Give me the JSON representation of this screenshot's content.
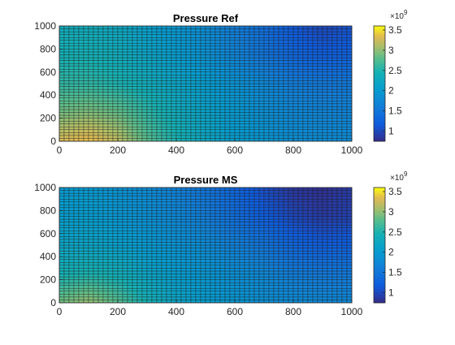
{
  "figure": {
    "background": "#ffffff",
    "colormap": "parula"
  },
  "chart_data": [
    {
      "type": "heatmap",
      "title": "Pressure Ref",
      "xlabel": "",
      "ylabel": "",
      "xlim": [
        0,
        1000
      ],
      "ylim": [
        0,
        1000
      ],
      "xticks": [
        0,
        200,
        400,
        600,
        800,
        1000
      ],
      "yticks": [
        0,
        200,
        400,
        600,
        800,
        1000
      ],
      "grid_cells": {
        "nx": 60,
        "ny": 40
      },
      "field": {
        "min": 750000000.0,
        "max": 3600000000.0,
        "samples_x": [
          0,
          100,
          200,
          300,
          400,
          500,
          600,
          700,
          800,
          900,
          1000
        ],
        "samples_y": [
          0,
          250,
          500,
          750,
          1000
        ],
        "values": [
          [
            3300000000.0,
            3400000000.0,
            3200000000.0,
            2800000000.0,
            2500000000.0,
            2250000000.0,
            2050000000.0,
            1950000000.0,
            1850000000.0,
            1800000000.0,
            1800000000.0
          ],
          [
            2900000000.0,
            2950000000.0,
            2850000000.0,
            2600000000.0,
            2350000000.0,
            2150000000.0,
            2000000000.0,
            1850000000.0,
            1750000000.0,
            1700000000.0,
            1700000000.0
          ],
          [
            2600000000.0,
            2600000000.0,
            2500000000.0,
            2350000000.0,
            2200000000.0,
            2050000000.0,
            1900000000.0,
            1750000000.0,
            1600000000.0,
            1550000000.0,
            1550000000.0
          ],
          [
            2450000000.0,
            2450000000.0,
            2350000000.0,
            2200000000.0,
            2050000000.0,
            1900000000.0,
            1700000000.0,
            1500000000.0,
            1300000000.0,
            1200000000.0,
            1250000000.0
          ],
          [
            2350000000.0,
            2350000000.0,
            2250000000.0,
            2100000000.0,
            1950000000.0,
            1800000000.0,
            1600000000.0,
            1400000000.0,
            1150000000.0,
            1000000000.0,
            1100000000.0
          ]
        ]
      },
      "colorbar": {
        "ticks": [
          1,
          1.5,
          2,
          2.5,
          3,
          3.5
        ],
        "tick_labels": [
          "1",
          "1.5",
          "2",
          "2.5",
          "3",
          "3.5"
        ],
        "range": [
          0.75,
          3.6
        ],
        "exponent_base": "×10",
        "exponent": "9"
      }
    },
    {
      "type": "heatmap",
      "title": "Pressure MS",
      "xlabel": "",
      "ylabel": "",
      "xlim": [
        0,
        1000
      ],
      "ylim": [
        0,
        1000
      ],
      "xticks": [
        0,
        200,
        400,
        600,
        800,
        1000
      ],
      "yticks": [
        0,
        200,
        400,
        600,
        800,
        1000
      ],
      "grid_cells": {
        "nx": 60,
        "ny": 40
      },
      "field": {
        "min": 750000000.0,
        "max": 3600000000.0,
        "samples_x": [
          0,
          100,
          200,
          300,
          400,
          500,
          600,
          700,
          800,
          900,
          1000
        ],
        "samples_y": [
          0,
          250,
          500,
          750,
          1000
        ],
        "values": [
          [
            2900000000.0,
            3050000000.0,
            2800000000.0,
            2450000000.0,
            2200000000.0,
            2050000000.0,
            1950000000.0,
            1850000000.0,
            1800000000.0,
            1750000000.0,
            1750000000.0
          ],
          [
            2450000000.0,
            2500000000.0,
            2400000000.0,
            2200000000.0,
            2050000000.0,
            1950000000.0,
            1850000000.0,
            1750000000.0,
            1600000000.0,
            1550000000.0,
            1550000000.0
          ],
          [
            2200000000.0,
            2200000000.0,
            2100000000.0,
            2000000000.0,
            1900000000.0,
            1800000000.0,
            1650000000.0,
            1500000000.0,
            1300000000.0,
            1200000000.0,
            1250000000.0
          ],
          [
            2050000000.0,
            2050000000.0,
            1950000000.0,
            1850000000.0,
            1750000000.0,
            1600000000.0,
            1400000000.0,
            1200000000.0,
            1000000000.0,
            900000000.0,
            950000000.0
          ],
          [
            2000000000.0,
            2000000000.0,
            1900000000.0,
            1800000000.0,
            1650000000.0,
            1500000000.0,
            1300000000.0,
            1050000000.0,
            850000000.0,
            800000000.0,
            900000000.0
          ]
        ]
      },
      "colorbar": {
        "ticks": [
          1,
          1.5,
          2,
          2.5,
          3,
          3.5
        ],
        "tick_labels": [
          "1",
          "1.5",
          "2",
          "2.5",
          "3",
          "3.5"
        ],
        "range": [
          0.75,
          3.6
        ],
        "exponent_base": "×10",
        "exponent": "9"
      }
    }
  ]
}
